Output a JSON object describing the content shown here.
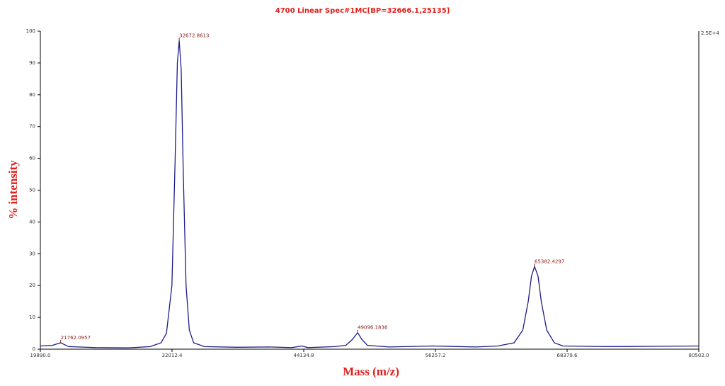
{
  "chart_data": {
    "type": "line",
    "title": "4700 Linear Spec#1MC[BP=32666.1,25135]",
    "xlabel": "Mass (m/z)",
    "ylabel": "% intensity",
    "y2_label": "2.5E+4",
    "xlim": [
      19890.0,
      80502.0
    ],
    "xticks": [
      {
        "value": 19890.0,
        "label": "19890.0"
      },
      32012.4,
      44134.8,
      56257.2,
      68379.6,
      {
        "value": 80502.0,
        "label": "80502.0"
      }
    ],
    "ylim": [
      0,
      100
    ],
    "yticks": [
      0,
      10,
      20,
      30,
      40,
      50,
      60,
      70,
      80,
      90,
      100
    ],
    "series": [
      {
        "color": "#1c1c8a",
        "x": [
          19890,
          21000,
          21762,
          22500,
          25000,
          28000,
          30000,
          31000,
          31500,
          32000,
          32300,
          32500,
          32672,
          32850,
          33050,
          33300,
          33600,
          34000,
          35000,
          38000,
          41000,
          43000,
          44000,
          44500,
          47000,
          48000,
          48600,
          49096,
          49500,
          50000,
          52000,
          56000,
          60000,
          62000,
          63500,
          64300,
          64800,
          65100,
          65382,
          65700,
          66000,
          66500,
          67200,
          68000,
          72000,
          76000,
          80502
        ],
        "values": [
          1,
          1.2,
          2,
          0.8,
          0.5,
          0.4,
          0.8,
          2,
          5,
          20,
          60,
          90,
          97,
          88,
          55,
          20,
          6,
          2,
          0.8,
          0.6,
          0.7,
          0.5,
          1,
          0.5,
          0.8,
          1.2,
          3,
          5.2,
          3,
          1.2,
          0.7,
          1,
          0.7,
          1,
          2,
          6,
          15,
          23,
          26,
          23,
          15,
          6,
          2,
          1,
          0.8,
          0.9,
          1
        ]
      }
    ],
    "peaks": {
      "x": [
        21762.0957,
        32672.8613,
        49096.1836,
        65382.4297
      ],
      "y": [
        2,
        97,
        5.2,
        26
      ],
      "labels": [
        "21762.0957",
        "32672.8613",
        "49096.1836",
        "65382.4297"
      ]
    }
  }
}
